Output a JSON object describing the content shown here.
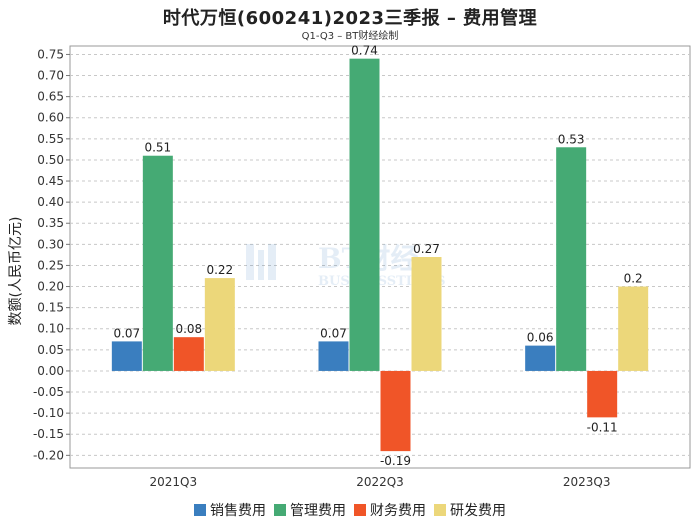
{
  "title": "时代万恒(600241)2023三季报 – 费用管理",
  "subtitle": "Q1-Q3 – BT财经绘制",
  "watermark": {
    "main": "BT财经",
    "sub": "BUSINESSTIMES"
  },
  "chart_data": {
    "type": "bar",
    "title": "时代万恒(600241)2023三季报 – 费用管理",
    "subtitle": "Q1-Q3 – BT财经绘制",
    "xlabel": "",
    "ylabel": "数额(人民币亿元)",
    "categories": [
      "2021Q3",
      "2022Q3",
      "2023Q3"
    ],
    "series": [
      {
        "name": "销售费用",
        "color": "#3a7ebf",
        "values": [
          0.07,
          0.07,
          0.06
        ],
        "labels": [
          "0.07",
          "0.07",
          "0.06"
        ]
      },
      {
        "name": "管理费用",
        "color": "#45aa74",
        "values": [
          0.51,
          0.74,
          0.53
        ],
        "labels": [
          "0.51",
          "0.74",
          "0.53"
        ]
      },
      {
        "name": "财务费用",
        "color": "#f05528",
        "values": [
          0.08,
          -0.19,
          -0.11
        ],
        "labels": [
          "0.08",
          "-0.19",
          "-0.11"
        ]
      },
      {
        "name": "研发费用",
        "color": "#ecd77a",
        "values": [
          0.22,
          0.27,
          0.2
        ],
        "labels": [
          "0.22",
          "0.27",
          "0.2"
        ]
      }
    ],
    "ylim": [
      -0.23,
      0.77
    ],
    "yticks": [
      "0.75",
      "0.70",
      "0.65",
      "0.60",
      "0.55",
      "0.50",
      "0.45",
      "0.40",
      "0.35",
      "0.30",
      "0.25",
      "0.20",
      "0.15",
      "0.10",
      "0.05",
      "0.00",
      "-0.05",
      "-0.10",
      "-0.15",
      "-0.20"
    ],
    "grid": true,
    "legend": "bottom"
  }
}
